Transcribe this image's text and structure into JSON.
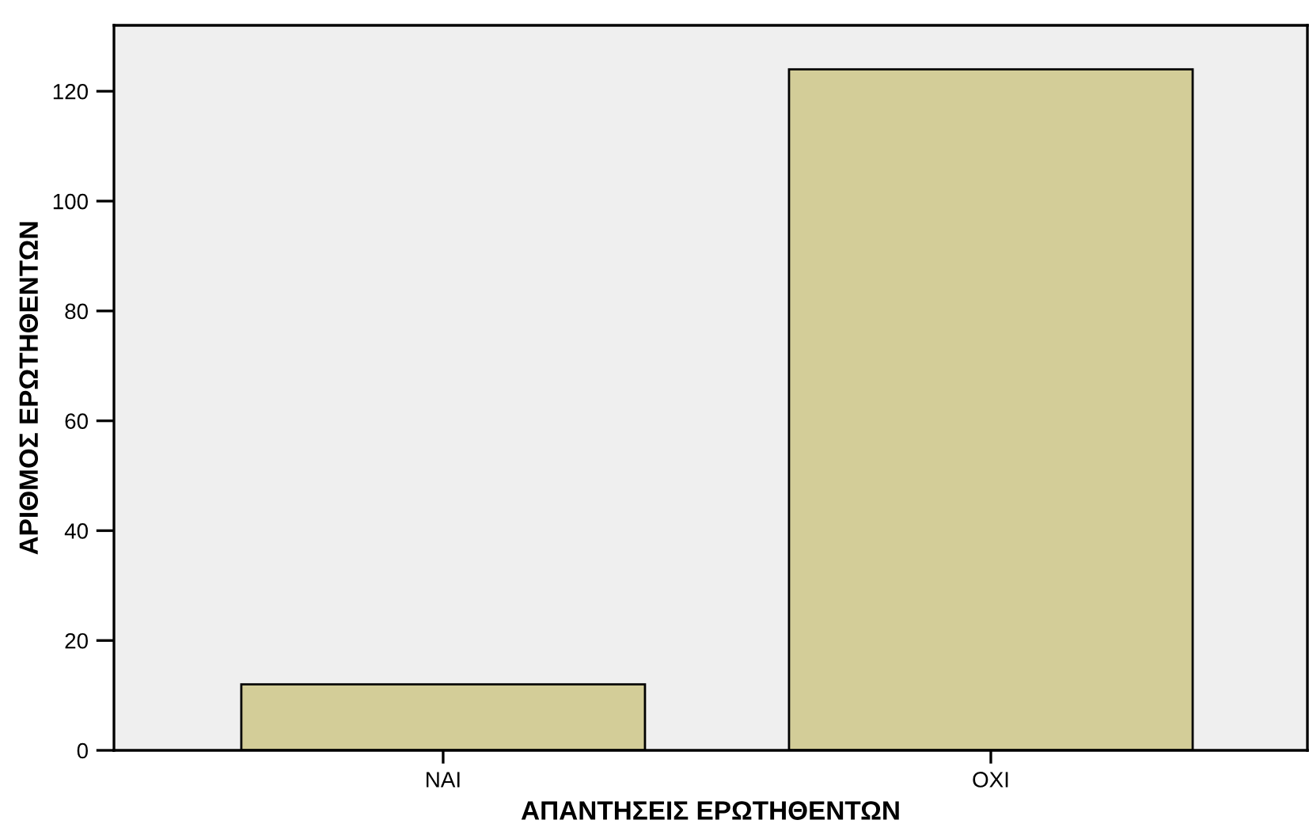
{
  "chart_data": {
    "type": "bar",
    "xlabel": "ΑΠΑΝΤΗΣΕΙΣ ΕΡΩΤΗΘΕΝΤΩΝ",
    "ylabel": "ΑΡΙΘΜΟΣ ΕΡΩΤΗΘΕΝΤΩΝ",
    "categories": [
      "NAI",
      "OXI"
    ],
    "values": [
      12,
      124
    ],
    "color": "#d3cd98",
    "ylim": [
      0,
      132
    ],
    "yticks": [
      0,
      20,
      40,
      60,
      80,
      100,
      120
    ],
    "grid": false
  }
}
